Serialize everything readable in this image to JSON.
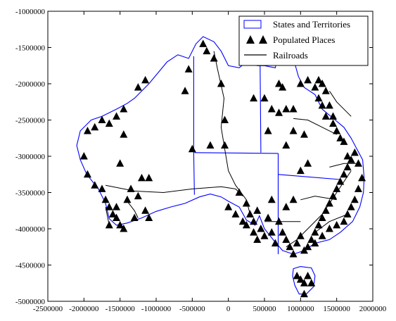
{
  "chart_data": {
    "type": "map",
    "projection_units": "metres (projected)",
    "xlim": [
      -2500000,
      2000000
    ],
    "ylim": [
      -5000000,
      -1000000
    ],
    "x_ticks": [
      -2500000,
      -2000000,
      -1500000,
      -1000000,
      -500000,
      0,
      500000,
      1000000,
      1500000,
      2000000
    ],
    "x_tick_labels": [
      "-2500000",
      "-2000000",
      "-1500000",
      "-1000000",
      "-500000",
      "0",
      "500000",
      "1000000",
      "1500000",
      "2000000"
    ],
    "y_ticks": [
      -1000000,
      -1500000,
      -2000000,
      -2500000,
      -3000000,
      -3500000,
      -4000000,
      -4500000,
      -5000000
    ],
    "y_tick_labels": [
      "-1000000",
      "-1500000",
      "-2000000",
      "-2500000",
      "-3000000",
      "-3500000",
      "-4000000",
      "-4500000",
      "-5000000"
    ],
    "legend": {
      "position": "top-right",
      "entries": [
        {
          "label": "States and Territories",
          "symbol": "blue-rectangle"
        },
        {
          "label": "Populated Places",
          "symbol": "black-triangle"
        },
        {
          "label": "Railroads",
          "symbol": "black-line"
        }
      ]
    },
    "colors": {
      "states": "#0000ff",
      "places": "#000000",
      "railroads": "#000000"
    },
    "coastline": [
      [
        -1300000,
        -2200000
      ],
      [
        -1100000,
        -2000000
      ],
      [
        -950000,
        -1820000
      ],
      [
        -850000,
        -1700000
      ],
      [
        -700000,
        -1600000
      ],
      [
        -550000,
        -1650000
      ],
      [
        -450000,
        -1450000
      ],
      [
        -350000,
        -1350000
      ],
      [
        -200000,
        -1420000
      ],
      [
        -100000,
        -1550000
      ],
      [
        0,
        -1750000
      ],
      [
        150000,
        -1780000
      ],
      [
        250000,
        -1700000
      ],
      [
        270000,
        -1500000
      ],
      [
        330000,
        -1450000
      ],
      [
        400000,
        -1750000
      ],
      [
        500000,
        -1750000
      ],
      [
        650000,
        -1780000
      ],
      [
        700000,
        -1500000
      ],
      [
        730000,
        -1300000
      ],
      [
        800000,
        -1150000
      ],
      [
        850000,
        -1300000
      ],
      [
        900000,
        -1650000
      ],
      [
        970000,
        -1900000
      ],
      [
        1050000,
        -2050000
      ],
      [
        1200000,
        -2150000
      ],
      [
        1300000,
        -2350000
      ],
      [
        1480000,
        -2500000
      ],
      [
        1600000,
        -2600000
      ],
      [
        1700000,
        -2750000
      ],
      [
        1780000,
        -2900000
      ],
      [
        1860000,
        -3050000
      ],
      [
        1880000,
        -3300000
      ],
      [
        1870000,
        -3500000
      ],
      [
        1820000,
        -3700000
      ],
      [
        1720000,
        -3900000
      ],
      [
        1550000,
        -4050000
      ],
      [
        1400000,
        -4150000
      ],
      [
        1200000,
        -4200000
      ],
      [
        1050000,
        -4300000
      ],
      [
        900000,
        -4350000
      ],
      [
        750000,
        -4300000
      ],
      [
        620000,
        -4150000
      ],
      [
        500000,
        -4000000
      ],
      [
        430000,
        -3820000
      ],
      [
        370000,
        -3950000
      ],
      [
        250000,
        -3880000
      ],
      [
        150000,
        -3700000
      ],
      [
        0,
        -3620000
      ],
      [
        -100000,
        -3560000
      ],
      [
        -250000,
        -3520000
      ],
      [
        -400000,
        -3560000
      ],
      [
        -600000,
        -3650000
      ],
      [
        -800000,
        -3700000
      ],
      [
        -1000000,
        -3760000
      ],
      [
        -1200000,
        -3850000
      ],
      [
        -1400000,
        -3920000
      ],
      [
        -1550000,
        -3950000
      ],
      [
        -1650000,
        -3860000
      ],
      [
        -1700000,
        -3650000
      ],
      [
        -1800000,
        -3450000
      ],
      [
        -1960000,
        -3250000
      ],
      [
        -2050000,
        -3050000
      ],
      [
        -2100000,
        -2850000
      ],
      [
        -2050000,
        -2650000
      ],
      [
        -1900000,
        -2500000
      ],
      [
        -1750000,
        -2450000
      ],
      [
        -1550000,
        -2350000
      ],
      [
        -1400000,
        -2270000
      ],
      [
        -1300000,
        -2200000
      ]
    ],
    "tasmania": [
      [
        900000,
        -4550000
      ],
      [
        1000000,
        -4520000
      ],
      [
        1150000,
        -4540000
      ],
      [
        1200000,
        -4650000
      ],
      [
        1180000,
        -4800000
      ],
      [
        1080000,
        -4900000
      ],
      [
        980000,
        -4900000
      ],
      [
        920000,
        -4780000
      ],
      [
        890000,
        -4650000
      ],
      [
        900000,
        -4550000
      ]
    ],
    "state_borders": [
      [
        [
          -480000,
          -1620000
        ],
        [
          -480000,
          -2950000
        ],
        [
          -470000,
          -3530000
        ]
      ],
      [
        [
          -470000,
          -2950000
        ],
        [
          690000,
          -2960000
        ]
      ],
      [
        [
          440000,
          -1750000
        ],
        [
          450000,
          -2950000
        ]
      ],
      [
        [
          690000,
          -2960000
        ],
        [
          690000,
          -4350000
        ]
      ],
      [
        [
          690000,
          -3250000
        ],
        [
          1550000,
          -3320000
        ]
      ]
    ],
    "railroads": [
      [
        [
          -1700000,
          -3400000
        ],
        [
          -1300000,
          -3480000
        ],
        [
          -900000,
          -3500000
        ],
        [
          -500000,
          -3450000
        ],
        [
          -100000,
          -3420000
        ],
        [
          100000,
          -3450000
        ],
        [
          200000,
          -3550000
        ]
      ],
      [
        [
          -50000,
          -2900000
        ],
        [
          0,
          -3200000
        ],
        [
          100000,
          -3400000
        ],
        [
          250000,
          -3600000
        ],
        [
          300000,
          -3800000
        ]
      ],
      [
        [
          -50000,
          -2900000
        ],
        [
          -100000,
          -2600000
        ],
        [
          -60000,
          -2200000
        ],
        [
          -150000,
          -1800000
        ],
        [
          -200000,
          -1550000
        ]
      ],
      [
        [
          -1700000,
          -3700000
        ],
        [
          -1650000,
          -3950000
        ]
      ],
      [
        [
          -1400000,
          -3620000
        ],
        [
          -1300000,
          -3750000
        ],
        [
          -1250000,
          -3850000
        ]
      ],
      [
        [
          1700000,
          -3200000
        ],
        [
          1500000,
          -3500000
        ],
        [
          1300000,
          -3800000
        ],
        [
          1100000,
          -4000000
        ],
        [
          950000,
          -4150000
        ],
        [
          800000,
          -4250000
        ]
      ],
      [
        [
          1500000,
          -2700000
        ],
        [
          1300000,
          -2600000
        ],
        [
          1100000,
          -2500000
        ],
        [
          900000,
          -2480000
        ]
      ],
      [
        [
          1800000,
          -3100000
        ],
        [
          1600000,
          -3100000
        ],
        [
          1400000,
          -3150000
        ]
      ],
      [
        [
          1700000,
          -2450000
        ],
        [
          1500000,
          -2250000
        ],
        [
          1400000,
          -2100000
        ]
      ],
      [
        [
          1000000,
          -3900000
        ],
        [
          700000,
          -3900000
        ],
        [
          500000,
          -3900000
        ]
      ],
      [
        [
          1500000,
          -3600000
        ],
        [
          1200000,
          -3550000
        ],
        [
          1000000,
          -3600000
        ]
      ],
      [
        [
          1650000,
          -3800000
        ],
        [
          1400000,
          -3900000
        ],
        [
          1200000,
          -4050000
        ]
      ]
    ],
    "populated_places": [
      [
        -1150000,
        -1950000
      ],
      [
        -1250000,
        -2050000
      ],
      [
        -1450000,
        -2350000
      ],
      [
        -1550000,
        -2450000
      ],
      [
        -1750000,
        -2500000
      ],
      [
        -1850000,
        -2600000
      ],
      [
        -1950000,
        -2650000
      ],
      [
        -2000000,
        -3000000
      ],
      [
        -1950000,
        -3250000
      ],
      [
        -1850000,
        -3400000
      ],
      [
        -1750000,
        -3450000
      ],
      [
        -1700000,
        -3600000
      ],
      [
        -1650000,
        -3700000
      ],
      [
        -1600000,
        -3800000
      ],
      [
        -1550000,
        -3850000
      ],
      [
        -1650000,
        -3950000
      ],
      [
        -1500000,
        -3950000
      ],
      [
        -1450000,
        -4000000
      ],
      [
        -1550000,
        -3700000
      ],
      [
        -1400000,
        -3600000
      ],
      [
        -1350000,
        -3450000
      ],
      [
        -1250000,
        -3550000
      ],
      [
        -1150000,
        -3750000
      ],
      [
        -1100000,
        -3300000
      ],
      [
        -1200000,
        -3300000
      ],
      [
        -1300000,
        -3850000
      ],
      [
        -1100000,
        -3850000
      ],
      [
        -1500000,
        -3100000
      ],
      [
        -1650000,
        -2550000
      ],
      [
        -1450000,
        -2700000
      ],
      [
        -550000,
        -1800000
      ],
      [
        -600000,
        -2100000
      ],
      [
        -500000,
        -2900000
      ],
      [
        -350000,
        -1450000
      ],
      [
        -300000,
        -1550000
      ],
      [
        -200000,
        -1650000
      ],
      [
        -100000,
        -2000000
      ],
      [
        -50000,
        -2500000
      ],
      [
        -50000,
        -2850000
      ],
      [
        -250000,
        -2850000
      ],
      [
        0,
        -3700000
      ],
      [
        100000,
        -3800000
      ],
      [
        150000,
        -3500000
      ],
      [
        250000,
        -3650000
      ],
      [
        300000,
        -3800000
      ],
      [
        350000,
        -3900000
      ],
      [
        400000,
        -3750000
      ],
      [
        450000,
        -4000000
      ],
      [
        500000,
        -4100000
      ],
      [
        550000,
        -3850000
      ],
      [
        600000,
        -4050000
      ],
      [
        650000,
        -4200000
      ],
      [
        700000,
        -3900000
      ],
      [
        750000,
        -4050000
      ],
      [
        800000,
        -4150000
      ],
      [
        850000,
        -4250000
      ],
      [
        900000,
        -4350000
      ],
      [
        950000,
        -4200000
      ],
      [
        1000000,
        -4100000
      ],
      [
        1050000,
        -4300000
      ],
      [
        1100000,
        -4250000
      ],
      [
        1150000,
        -4150000
      ],
      [
        1200000,
        -4050000
      ],
      [
        1250000,
        -3950000
      ],
      [
        1300000,
        -3850000
      ],
      [
        1350000,
        -3750000
      ],
      [
        1400000,
        -3650000
      ],
      [
        1450000,
        -3550000
      ],
      [
        1500000,
        -3450000
      ],
      [
        1550000,
        -3350000
      ],
      [
        1600000,
        -3250000
      ],
      [
        1650000,
        -3150000
      ],
      [
        1700000,
        -3050000
      ],
      [
        1750000,
        -2950000
      ],
      [
        1800000,
        -3100000
      ],
      [
        1850000,
        -3300000
      ],
      [
        1800000,
        -3450000
      ],
      [
        1750000,
        -3600000
      ],
      [
        1700000,
        -3700000
      ],
      [
        1650000,
        -3800000
      ],
      [
        1600000,
        -3900000
      ],
      [
        1500000,
        -3950000
      ],
      [
        1400000,
        -4000000
      ],
      [
        1300000,
        -4100000
      ],
      [
        1200000,
        -4200000
      ],
      [
        1550000,
        -2750000
      ],
      [
        1500000,
        -2650000
      ],
      [
        1450000,
        -2550000
      ],
      [
        1350000,
        -2450000
      ],
      [
        1300000,
        -2300000
      ],
      [
        1250000,
        -2200000
      ],
      [
        1200000,
        -2050000
      ],
      [
        1100000,
        -1950000
      ],
      [
        1000000,
        -2000000
      ],
      [
        900000,
        -2350000
      ],
      [
        800000,
        -2350000
      ],
      [
        700000,
        -2400000
      ],
      [
        600000,
        -2350000
      ],
      [
        550000,
        -2650000
      ],
      [
        800000,
        -2850000
      ],
      [
        900000,
        -2650000
      ],
      [
        1050000,
        -2700000
      ],
      [
        1100000,
        -3100000
      ],
      [
        1000000,
        -3200000
      ],
      [
        900000,
        -3600000
      ],
      [
        800000,
        -3700000
      ],
      [
        600000,
        -3600000
      ],
      [
        500000,
        -2200000
      ],
      [
        350000,
        -2200000
      ],
      [
        300000,
        -1700000
      ],
      [
        700000,
        -2000000
      ],
      [
        750000,
        -2050000
      ],
      [
        1250000,
        -1950000
      ],
      [
        1300000,
        -2000000
      ],
      [
        1350000,
        -2100000
      ],
      [
        1400000,
        -2300000
      ],
      [
        1450000,
        -2450000
      ],
      [
        1600000,
        -2800000
      ],
      [
        1650000,
        -3000000
      ],
      [
        950000,
        -4650000
      ],
      [
        1000000,
        -4700000
      ],
      [
        1050000,
        -4750000
      ],
      [
        1100000,
        -4650000
      ],
      [
        1050000,
        -4900000
      ],
      [
        1150000,
        -4750000
      ],
      [
        350000,
        -4050000
      ],
      [
        400000,
        -4150000
      ],
      [
        250000,
        -3950000
      ],
      [
        200000,
        -3900000
      ]
    ]
  }
}
